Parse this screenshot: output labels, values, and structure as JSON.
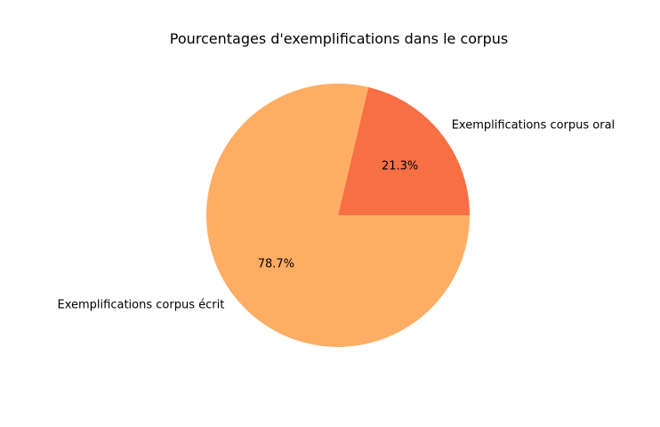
{
  "chart_data": {
    "type": "pie",
    "title": "Pourcentages d'exemplifications dans le corpus",
    "slices": [
      {
        "label": "Exemplifications corpus oral",
        "value": 21.3,
        "pct_label": "21.3%",
        "color": "#f76f45"
      },
      {
        "label": "Exemplifications corpus écrit",
        "value": 78.7,
        "pct_label": "78.7%",
        "color": "#feae64"
      }
    ],
    "start_angle_deg": 0,
    "direction": "counterclockwise"
  }
}
